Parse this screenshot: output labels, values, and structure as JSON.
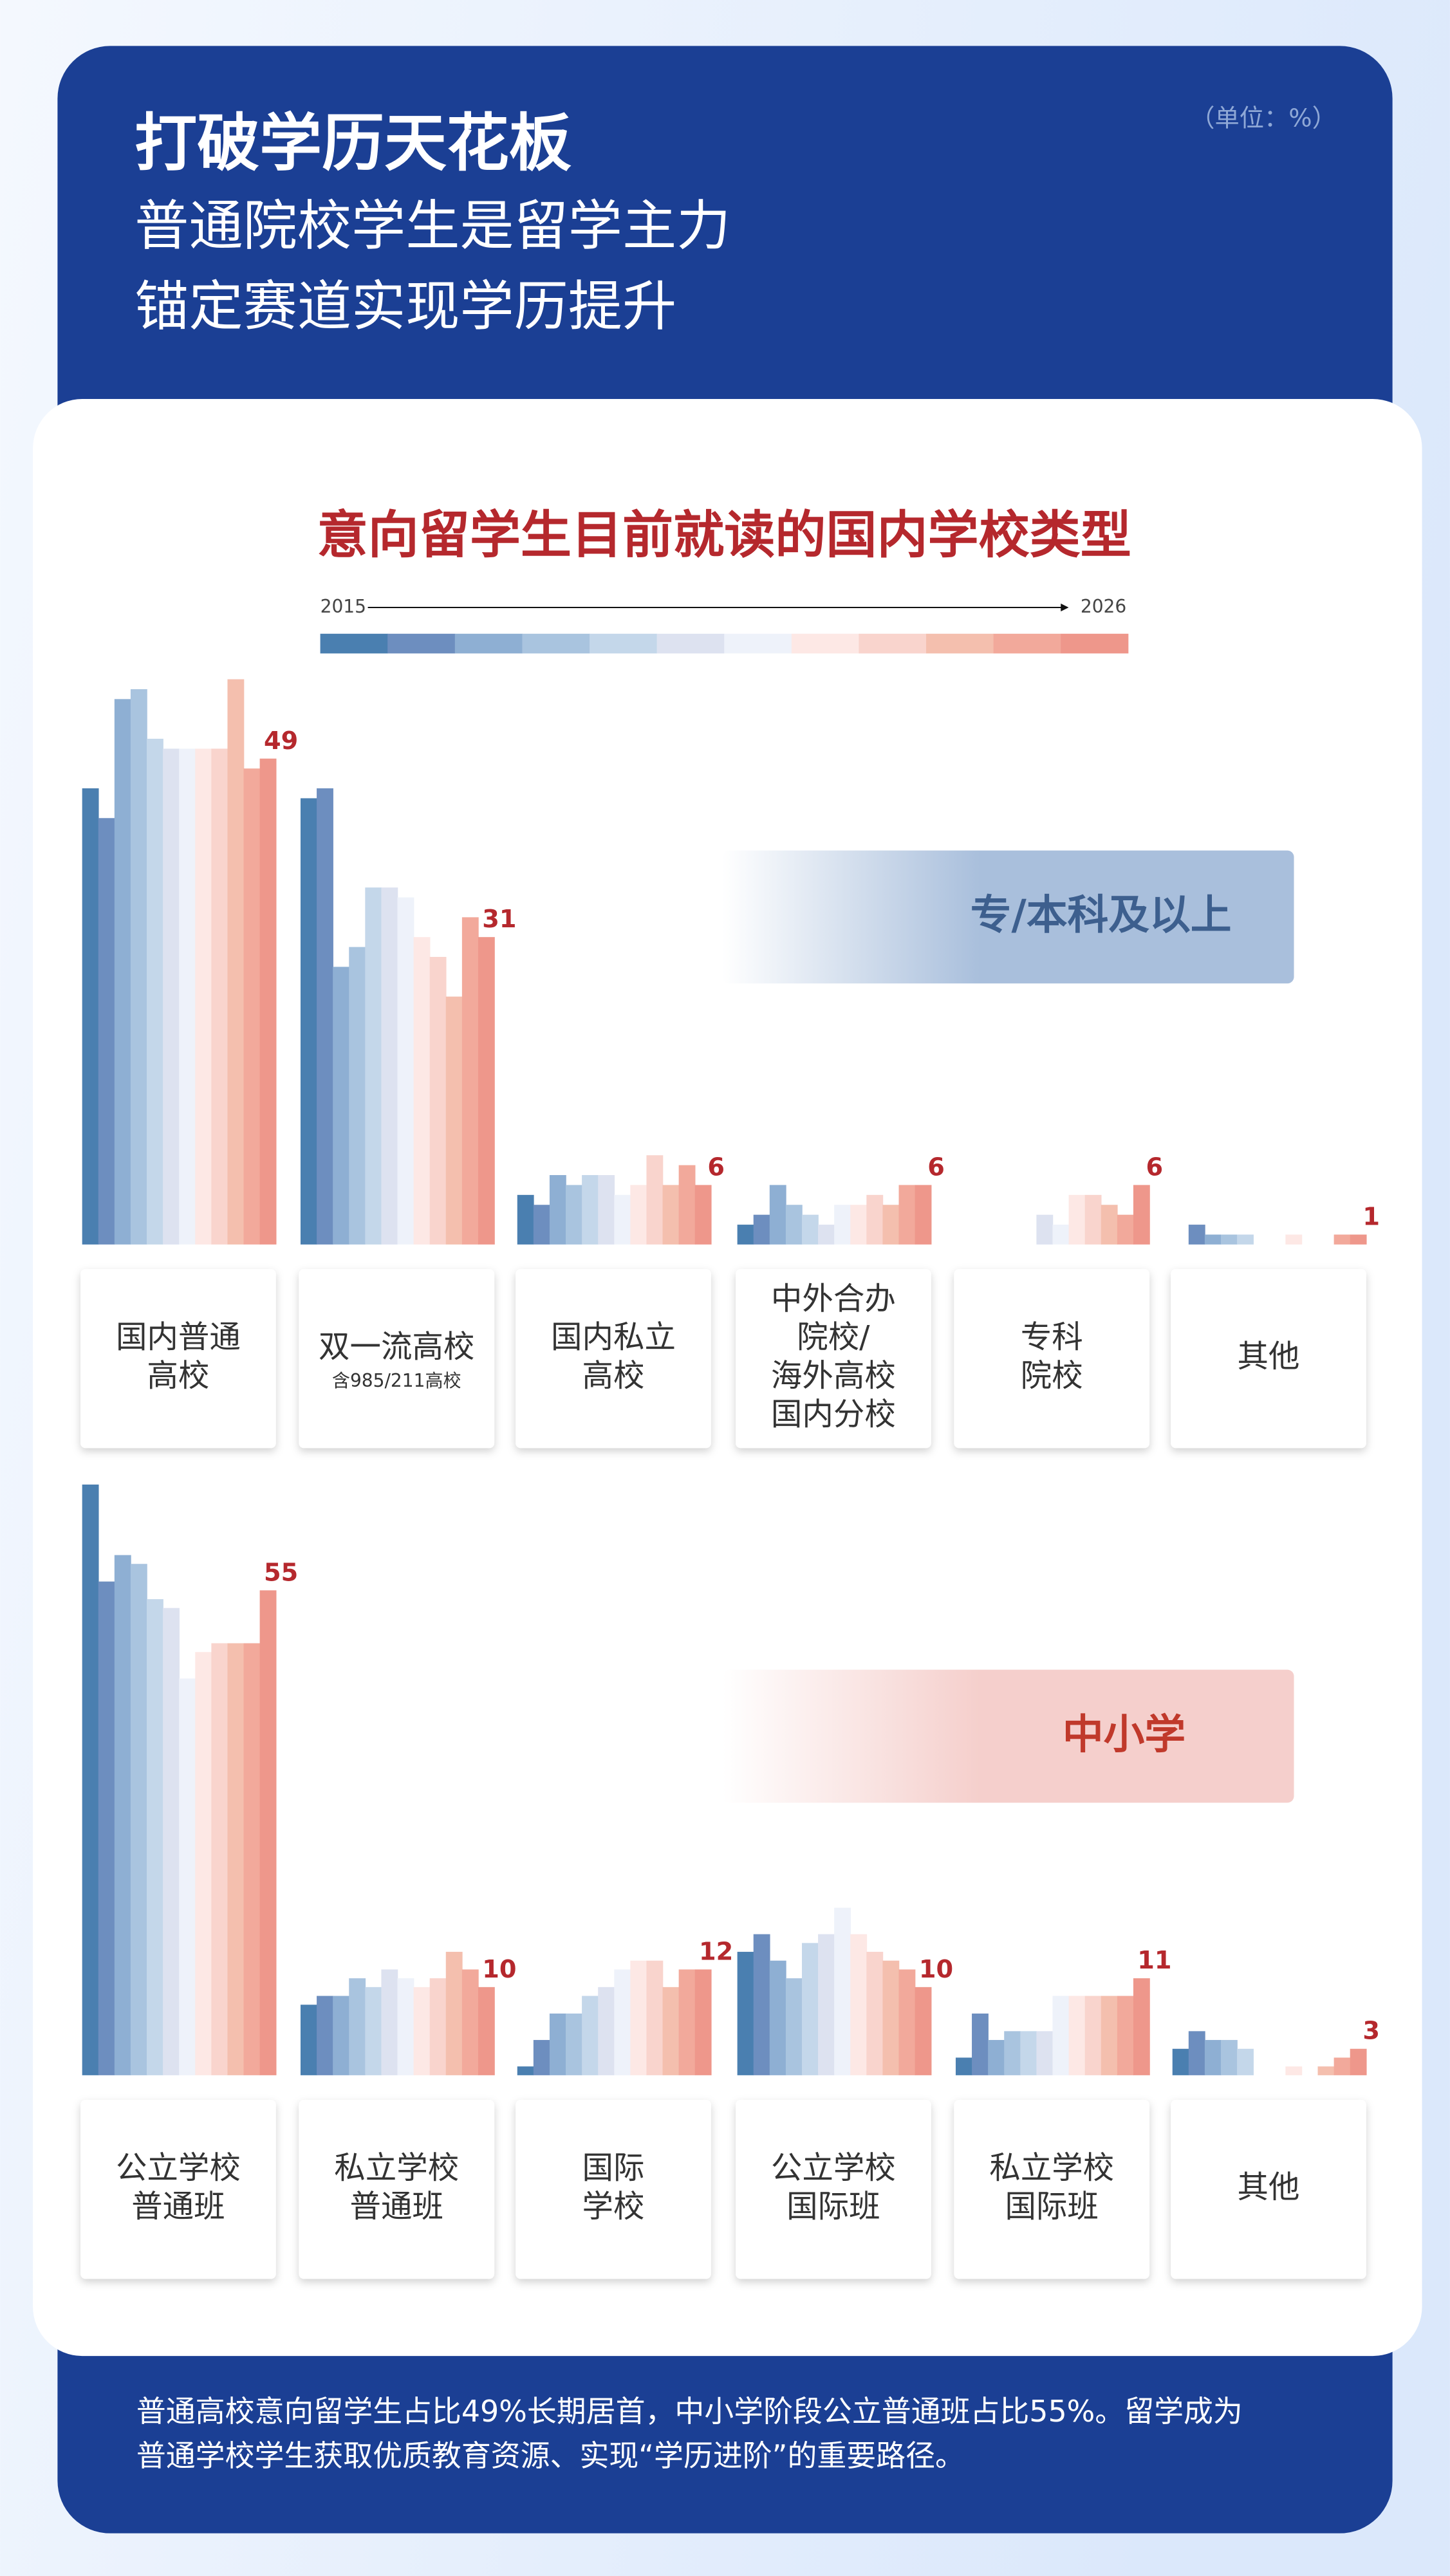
{
  "header": {
    "title": "打破学历天花板",
    "subtitle_lines": [
      "普通院校学生是留学主力",
      "锚定赛道实现学历提升"
    ],
    "unit": "（单位：%）"
  },
  "chart_data": [
    {
      "type": "bar",
      "title": "意向留学生目前就读的国内学校类型",
      "legend_start": "2015",
      "legend_end": "2026",
      "year_colors": [
        "#4a7fb0",
        "#6d8ebf",
        "#8eafd3",
        "#a9c4df",
        "#c4d7ea",
        "#dde2f0",
        "#eef2fa",
        "#fde8e5",
        "#f9d4cd",
        "#f4bfae",
        "#f2a99b",
        "#ee978b"
      ],
      "section_label": "专/本科及以上",
      "categories": [
        [
          "国内普通",
          "高校"
        ],
        [
          "双一流高校",
          {
            "text": "含985/211高校",
            "small": true
          }
        ],
        [
          "国内私立",
          "高校"
        ],
        [
          "中外合办",
          "院校/",
          "海外高校",
          "国内分校"
        ],
        [
          "专科",
          "院校"
        ],
        [
          "其他"
        ]
      ],
      "values": [
        [
          46,
          43,
          55,
          56,
          51,
          50,
          50,
          50,
          50,
          57,
          48,
          49
        ],
        [
          45,
          46,
          28,
          30,
          36,
          36,
          35,
          31,
          29,
          25,
          33,
          31
        ],
        [
          5,
          4,
          7,
          6,
          7,
          7,
          5,
          6,
          9,
          6,
          8,
          6
        ],
        [
          2,
          3,
          6,
          4,
          3,
          2,
          4,
          4,
          5,
          4,
          6,
          6
        ],
        [
          0,
          0,
          0,
          0,
          0,
          3,
          2,
          5,
          5,
          4,
          3,
          6
        ],
        [
          0,
          2,
          1,
          1,
          1,
          0,
          0,
          1,
          0,
          0,
          1,
          1
        ]
      ]
    },
    {
      "type": "bar",
      "section_label": "中小学",
      "year_colors": [
        "#4a7fb0",
        "#6d8ebf",
        "#8eafd3",
        "#a9c4df",
        "#c4d7ea",
        "#dde2f0",
        "#eef2fa",
        "#fde8e5",
        "#f9d4cd",
        "#f4bfae",
        "#f2a99b",
        "#ee978b"
      ],
      "categories": [
        [
          "公立学校",
          "普通班"
        ],
        [
          "私立学校",
          "普通班"
        ],
        [
          "国际",
          "学校"
        ],
        [
          "公立学校",
          "国际班"
        ],
        [
          "私立学校",
          "国际班"
        ],
        [
          "其他"
        ]
      ],
      "values": [
        [
          67,
          56,
          59,
          58,
          54,
          53,
          45,
          48,
          49,
          49,
          49,
          55
        ],
        [
          8,
          9,
          9,
          11,
          10,
          12,
          11,
          10,
          11,
          14,
          12,
          10
        ],
        [
          1,
          4,
          7,
          7,
          9,
          10,
          12,
          13,
          13,
          10,
          12,
          12
        ],
        [
          14,
          16,
          13,
          11,
          15,
          16,
          19,
          16,
          14,
          13,
          12,
          10
        ],
        [
          2,
          7,
          4,
          5,
          5,
          5,
          9,
          9,
          9,
          9,
          9,
          11
        ],
        [
          3,
          5,
          4,
          4,
          3,
          0,
          0,
          1,
          0,
          1,
          2,
          3
        ]
      ]
    }
  ],
  "footer": {
    "lines": [
      "普通高校意向留学生占比49%长期居首，中小学阶段公立普通班占比55%。留学成为",
      "普通学校学生获取优质教育资源、实现“学历进阶”的重要路径。"
    ]
  }
}
